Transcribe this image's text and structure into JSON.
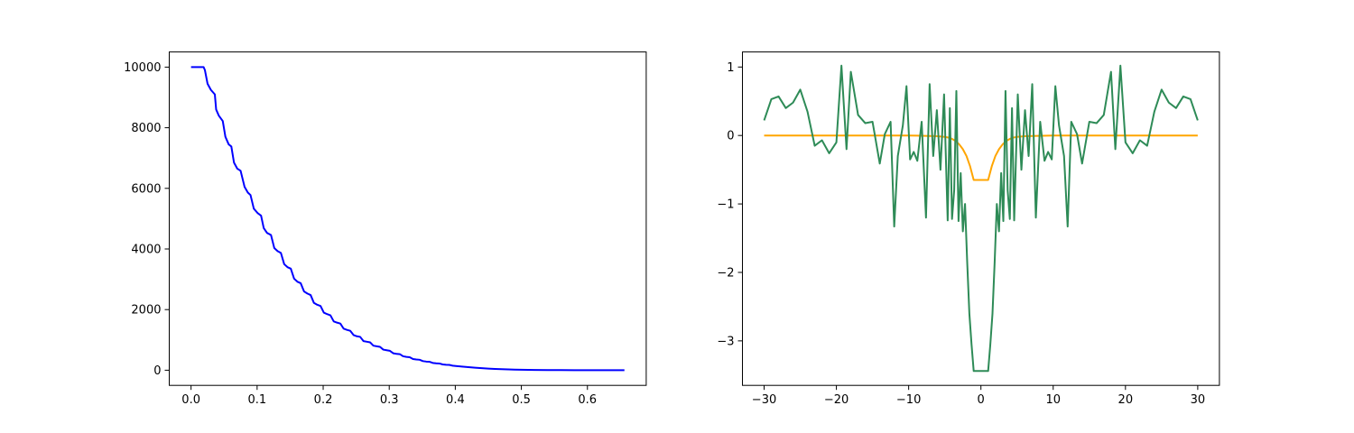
{
  "chart_data": [
    {
      "type": "line",
      "title": "",
      "xlabel": "",
      "ylabel": "",
      "xlim": [
        -0.033,
        0.689
      ],
      "ylim": [
        -500,
        10500
      ],
      "xticks": [
        0.0,
        0.1,
        0.2,
        0.3,
        0.4,
        0.5,
        0.6
      ],
      "xtick_labels": [
        "0.0",
        "0.1",
        "0.2",
        "0.3",
        "0.4",
        "0.5",
        "0.6"
      ],
      "yticks": [
        0,
        2000,
        4000,
        6000,
        8000,
        10000
      ],
      "ytick_labels": [
        "0",
        "2000",
        "4000",
        "6000",
        "8000",
        "10000"
      ],
      "grid": false,
      "series": [
        {
          "color": "#0000ff",
          "x": [
            0.0,
            0.019,
            0.021,
            0.025,
            0.03,
            0.036,
            0.038,
            0.042,
            0.048,
            0.052,
            0.057,
            0.061,
            0.065,
            0.07,
            0.075,
            0.081,
            0.086,
            0.09,
            0.095,
            0.101,
            0.106,
            0.11,
            0.115,
            0.121,
            0.126,
            0.131,
            0.136,
            0.141,
            0.146,
            0.151,
            0.156,
            0.161,
            0.166,
            0.171,
            0.176,
            0.181,
            0.186,
            0.191,
            0.196,
            0.201,
            0.206,
            0.211,
            0.216,
            0.221,
            0.226,
            0.231,
            0.236,
            0.241,
            0.246,
            0.251,
            0.256,
            0.261,
            0.266,
            0.271,
            0.276,
            0.281,
            0.286,
            0.291,
            0.296,
            0.301,
            0.306,
            0.311,
            0.316,
            0.321,
            0.326,
            0.331,
            0.336,
            0.341,
            0.346,
            0.351,
            0.356,
            0.361,
            0.366,
            0.371,
            0.376,
            0.381,
            0.386,
            0.391,
            0.396,
            0.401,
            0.41,
            0.42,
            0.43,
            0.44,
            0.45,
            0.46,
            0.47,
            0.48,
            0.49,
            0.5,
            0.52,
            0.54,
            0.56,
            0.58,
            0.6,
            0.62,
            0.64,
            0.656
          ],
          "y": [
            10000,
            10000,
            9900,
            9450,
            9250,
            9100,
            8600,
            8400,
            8220,
            7700,
            7450,
            7380,
            6850,
            6650,
            6580,
            6050,
            5860,
            5780,
            5330,
            5180,
            5100,
            4690,
            4530,
            4460,
            4030,
            3930,
            3870,
            3500,
            3400,
            3350,
            3020,
            2920,
            2870,
            2600,
            2530,
            2480,
            2220,
            2160,
            2120,
            1900,
            1850,
            1810,
            1610,
            1570,
            1540,
            1370,
            1330,
            1300,
            1160,
            1120,
            1100,
            960,
            940,
            920,
            810,
            790,
            770,
            680,
            660,
            640,
            560,
            540,
            530,
            460,
            440,
            430,
            370,
            355,
            345,
            300,
            285,
            278,
            240,
            228,
            222,
            190,
            180,
            175,
            150,
            140,
            120,
            100,
            82,
            66,
            52,
            42,
            33,
            26,
            20,
            15,
            9,
            5,
            3,
            2,
            1,
            0,
            0,
            0
          ]
        }
      ]
    },
    {
      "type": "line",
      "title": "",
      "xlabel": "",
      "ylabel": "",
      "xlim": [
        -33,
        33
      ],
      "ylim": [
        -3.65,
        1.22
      ],
      "xticks": [
        -30,
        -20,
        -10,
        0,
        10,
        20,
        30
      ],
      "xtick_labels": [
        "−30",
        "−20",
        "−10",
        "0",
        "10",
        "20",
        "30"
      ],
      "yticks": [
        1,
        0,
        -1,
        -2,
        -3
      ],
      "ytick_labels": [
        "1",
        "0",
        "−1",
        "−2",
        "−3"
      ],
      "grid": false,
      "series": [
        {
          "color": "#ffa500",
          "x": [
            -30,
            -10,
            -6,
            -5,
            -4.5,
            -4,
            -3.5,
            -3,
            -2.5,
            -2,
            -1.5,
            -1,
            1,
            1.5,
            2,
            2.5,
            3,
            3.5,
            4,
            4.5,
            5,
            6,
            10,
            30
          ],
          "y": [
            0,
            0,
            -0.01,
            -0.02,
            -0.03,
            -0.05,
            -0.08,
            -0.13,
            -0.2,
            -0.3,
            -0.45,
            -0.65,
            -0.65,
            -0.45,
            -0.3,
            -0.2,
            -0.13,
            -0.08,
            -0.05,
            -0.03,
            -0.02,
            -0.01,
            0,
            0
          ]
        },
        {
          "color": "#2e8b57",
          "x": [
            -30,
            -29,
            -28,
            -27,
            -26,
            -25,
            -24,
            -23,
            -22,
            -21,
            -20,
            -19.3,
            -18.6,
            -18,
            -17,
            -16,
            -15,
            -14,
            -13.3,
            -12.5,
            -12,
            -11.5,
            -10.8,
            -10.3,
            -9.8,
            -9.3,
            -8.8,
            -8.2,
            -7.6,
            -7.1,
            -6.6,
            -6.1,
            -5.6,
            -5.1,
            -4.6,
            -4.3,
            -4,
            -3.7,
            -3.4,
            -3.1,
            -2.8,
            -2.5,
            -2.2,
            -1.9,
            -1.6,
            -1.3,
            -1,
            1,
            1.3,
            1.6,
            1.9,
            2.2,
            2.5,
            2.8,
            3.1,
            3.4,
            3.7,
            4,
            4.3,
            4.6,
            5.1,
            5.6,
            6.1,
            6.6,
            7.1,
            7.6,
            8.2,
            8.8,
            9.3,
            9.8,
            10.3,
            10.8,
            11.5,
            12,
            12.5,
            13.3,
            14,
            15,
            16,
            17,
            18,
            18.6,
            19.3,
            20,
            21,
            22,
            23,
            24,
            25,
            26,
            27,
            28,
            29,
            30
          ],
          "y": [
            0.22,
            0.53,
            0.57,
            0.4,
            0.48,
            0.67,
            0.35,
            -0.15,
            -0.07,
            -0.26,
            -0.1,
            1.02,
            -0.2,
            0.93,
            0.3,
            0.18,
            0.2,
            -0.41,
            0.02,
            0.2,
            -1.33,
            -0.3,
            0.15,
            0.72,
            -0.35,
            -0.24,
            -0.37,
            0.2,
            -1.2,
            0.75,
            -0.3,
            0.37,
            -0.5,
            0.6,
            -1.24,
            0.4,
            -1.22,
            -0.8,
            0.65,
            -1.25,
            -0.55,
            -1.4,
            -1.0,
            -1.85,
            -2.6,
            -3.05,
            -3.44,
            -3.44,
            -3.05,
            -2.6,
            -1.85,
            -1.0,
            -1.4,
            -0.55,
            -1.25,
            0.65,
            -0.8,
            -1.22,
            0.4,
            -1.24,
            0.6,
            -0.5,
            0.37,
            -0.3,
            0.75,
            -1.2,
            0.2,
            -0.37,
            -0.24,
            -0.35,
            0.72,
            0.15,
            -0.3,
            -1.33,
            0.2,
            0.02,
            -0.41,
            0.2,
            0.18,
            0.3,
            0.93,
            -0.2,
            1.02,
            -0.1,
            -0.26,
            -0.07,
            -0.15,
            0.35,
            0.67,
            0.48,
            0.4,
            0.57,
            0.53,
            0.22
          ]
        }
      ]
    }
  ]
}
